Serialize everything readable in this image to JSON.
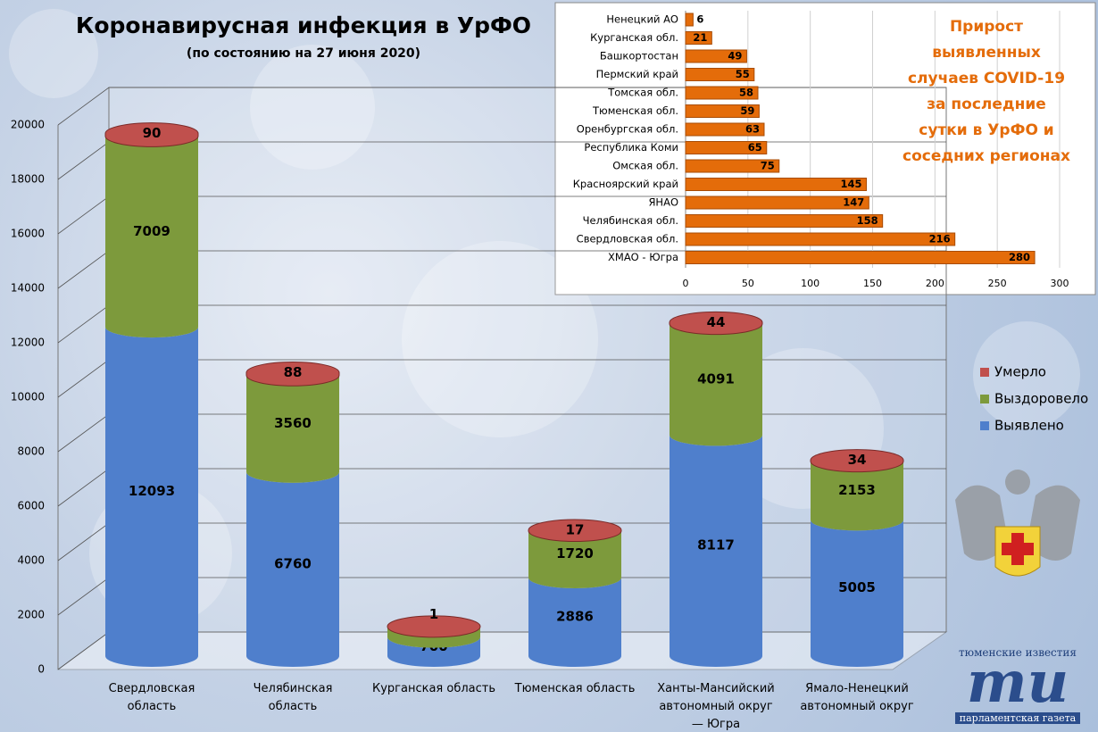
{
  "chart_data": [
    {
      "type": "cylinder-stacked",
      "title": "Коронавирусная инфекция в УрФО",
      "subtitle": "(по состоянию на 27 июня 2020)",
      "categories": [
        "Свердловская область",
        "Челябинская область",
        "Курганская область",
        "Тюменская область",
        "Ханты-Мансийский автономный округ — Югра",
        "Ямало-Ненецкий автономный округ"
      ],
      "series": [
        {
          "name": "Выявлено",
          "color": "#4f7fcc",
          "values": [
            12093,
            6760,
            700,
            2886,
            8117,
            5005
          ]
        },
        {
          "name": "Выздоровело",
          "color": "#7d9a3c",
          "values": [
            7009,
            3560,
            386,
            1720,
            4091,
            2153
          ]
        },
        {
          "name": "Умерло",
          "color": "#c0504d",
          "values": [
            90,
            88,
            1,
            17,
            44,
            34
          ]
        }
      ],
      "ylim": [
        0,
        20000
      ],
      "yticks": [
        0,
        2000,
        4000,
        6000,
        8000,
        10000,
        12000,
        14000,
        16000,
        18000,
        20000
      ],
      "grid": true,
      "legend": "right"
    },
    {
      "type": "barh",
      "title": "Прирост выявленных случаев COVID-19 за последние сутки в УрФО и соседних регионах",
      "categories": [
        "Ненецкий АО",
        "Курганская обл.",
        "Башкортостан",
        "Пермский край",
        "Томская обл.",
        "Тюменская обл.",
        "Оренбургская обл.",
        "Республика Коми",
        "Омская обл.",
        "Красноярский край",
        "ЯНАО",
        "Челябинская обл.",
        "Свердловская обл.",
        "ХМАО - Югра"
      ],
      "values": [
        6,
        21,
        49,
        55,
        58,
        59,
        63,
        65,
        75,
        145,
        147,
        158,
        216,
        280
      ],
      "color": "#e46c0a",
      "xlim": [
        0,
        300
      ],
      "xticks": [
        0,
        50,
        100,
        150,
        200,
        250,
        300
      ],
      "grid": true
    }
  ],
  "logo": {
    "top": "тюменские известия",
    "letters": "ти",
    "bottom": "парламентская газета"
  }
}
